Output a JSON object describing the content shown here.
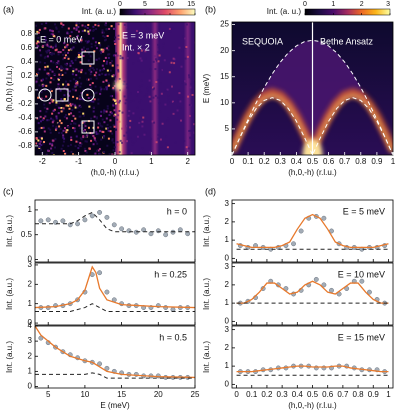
{
  "chart_data": [
    {
      "type": "heatmap",
      "panel_label": "(a)",
      "xlabel": "(h,0,-h) (r.l.u.)",
      "ylabel": "(h,0,h) (r.l.u.)",
      "xlim": [
        -2.2,
        2.2
      ],
      "xticks": [
        -2,
        -1,
        0,
        1,
        2
      ],
      "ylim": [
        -0.93,
        0.97
      ],
      "yticks": [
        -0.8,
        -0.6,
        -0.4,
        -0.2,
        0,
        0.2,
        0.4,
        0.6,
        0.8
      ],
      "annotations": [
        "E = 0 meV",
        "E = 3 meV",
        "Int. × 2"
      ],
      "colorbar": {
        "label": "Int. (a. u.)",
        "lim": [
          0,
          15
        ],
        "ticks": [
          0,
          5,
          10,
          15
        ],
        "colors": [
          "#000004",
          "#3b0f70",
          "#8c2981",
          "#de4968",
          "#fe9f6d",
          "#fcfdbf"
        ]
      }
    },
    {
      "type": "heatmap",
      "panel_label": "(b)",
      "xlabel": "(h,0,-h) (r.l.u.)",
      "ylabel": "E (meV)",
      "xlim": [
        0,
        1
      ],
      "xticks": [
        0,
        0.1,
        0.2,
        0.3,
        0.4,
        0.5,
        0.6,
        0.7,
        0.8,
        0.9,
        1
      ],
      "ylim": [
        0,
        25.5
      ],
      "yticks": [
        5,
        10,
        15,
        20,
        25
      ],
      "annotations": [
        "SEQUOIA",
        "Bethe Ansatz"
      ],
      "colorbar": {
        "label": "Int. (a. u.)",
        "lim": [
          0,
          3
        ],
        "ticks": [
          0,
          1,
          2,
          3
        ],
        "colors": [
          "#000004",
          "#1b0c41",
          "#4a0c6b",
          "#a52c60",
          "#ed6925",
          "#fbb61a",
          "#fcffa4"
        ]
      },
      "series": [
        {
          "style": "dashed",
          "color": "#ffffff",
          "x": [
            0,
            0.05,
            0.1,
            0.15,
            0.2,
            0.25,
            0.3,
            0.35,
            0.4,
            0.45,
            0.5,
            0.55,
            0.6,
            0.65,
            0.7,
            0.75,
            0.8,
            0.85,
            0.9,
            0.95,
            1
          ],
          "values": [
            0,
            3.44,
            6.8,
            9.99,
            12.93,
            15.56,
            17.8,
            19.6,
            20.92,
            21.73,
            22,
            21.73,
            20.92,
            19.6,
            17.8,
            15.56,
            12.93,
            9.99,
            6.8,
            3.44,
            0
          ]
        },
        {
          "style": "dashed",
          "color": "#ffffff",
          "x": [
            0,
            0.05,
            0.1,
            0.15,
            0.2,
            0.25,
            0.3,
            0.35,
            0.4,
            0.45,
            0.5,
            0.55,
            0.6,
            0.65,
            0.7,
            0.75,
            0.8,
            0.85,
            0.9,
            0.95,
            1
          ],
          "values": [
            0,
            3.4,
            6.47,
            8.9,
            10.46,
            11,
            10.46,
            8.9,
            6.47,
            3.4,
            0,
            3.4,
            6.47,
            8.9,
            10.46,
            11,
            10.46,
            8.9,
            6.47,
            3.4,
            0
          ]
        }
      ]
    },
    {
      "type": "line",
      "panel_label": "(c)",
      "ylabel": "Int. (a.u.)",
      "annotation": "h = 0",
      "xlim": [
        3.2,
        25
      ],
      "xticks": [
        5,
        10,
        15,
        20,
        25
      ],
      "show_xtick_labels": false,
      "ylim": [
        -0.05,
        1.2
      ],
      "yticks": [
        0,
        0.5,
        1
      ],
      "series": [
        {
          "style": "markers",
          "color": "#a3acb6",
          "x": [
            4,
            5,
            6,
            7,
            8,
            9,
            10,
            11,
            12,
            13,
            14,
            15,
            16,
            17,
            18,
            19,
            20,
            21,
            22,
            23,
            24
          ],
          "values": [
            0.78,
            0.8,
            0.75,
            0.78,
            0.7,
            0.72,
            0.8,
            0.88,
            0.95,
            0.85,
            0.7,
            0.62,
            0.58,
            0.55,
            0.6,
            0.52,
            0.58,
            0.5,
            0.55,
            0.6,
            0.52
          ]
        },
        {
          "style": "dashed",
          "color": "#222222",
          "x": [
            3.2,
            8,
            9,
            10,
            11,
            12,
            13,
            14,
            25
          ],
          "values": [
            0.72,
            0.72,
            0.78,
            0.88,
            0.95,
            0.8,
            0.62,
            0.56,
            0.56
          ]
        }
      ]
    },
    {
      "type": "line",
      "ylabel": "Int. (a.u.)",
      "annotation": "h = 0.25",
      "xlim": [
        3.2,
        25
      ],
      "xticks": [
        5,
        10,
        15,
        20,
        25
      ],
      "show_xtick_labels": false,
      "ylim": [
        -0.1,
        3.1
      ],
      "yticks": [
        0,
        1,
        2,
        3
      ],
      "series": [
        {
          "style": "markers",
          "color": "#a3acb6",
          "x": [
            4,
            5,
            6,
            7,
            8,
            9,
            10,
            11,
            12,
            13,
            14,
            15,
            16,
            17,
            18,
            19,
            20,
            21,
            22,
            23,
            24
          ],
          "values": [
            0.8,
            0.8,
            0.9,
            0.9,
            1,
            1.2,
            1.6,
            2.5,
            2.6,
            1.6,
            1.2,
            1,
            0.9,
            0.9,
            0.8,
            0.8,
            0.9,
            0.8,
            0.7,
            0.8,
            0.8
          ]
        },
        {
          "style": "solid",
          "color": "#e8792c",
          "x": [
            3.2,
            6,
            8,
            9,
            10,
            10.5,
            11,
            11.5,
            12,
            13,
            15,
            20,
            25
          ],
          "values": [
            0.8,
            0.85,
            1,
            1.2,
            1.7,
            2.3,
            2.9,
            2.6,
            1.8,
            1.2,
            0.95,
            0.85,
            0.8
          ]
        },
        {
          "style": "dashed",
          "color": "#222222",
          "x": [
            3.2,
            8,
            10,
            11,
            12,
            13,
            25
          ],
          "values": [
            0.6,
            0.6,
            0.8,
            1,
            0.8,
            0.6,
            0.6
          ]
        }
      ]
    },
    {
      "type": "line",
      "ylabel": "Int. (a.u.)",
      "xlabel": "E (meV)",
      "annotation": "h = 0.5",
      "xlim": [
        3.2,
        25
      ],
      "xticks": [
        5,
        10,
        15,
        20,
        25
      ],
      "ylim": [
        -0.1,
        4
      ],
      "yticks": [
        0,
        1,
        2,
        3,
        4
      ],
      "series": [
        {
          "style": "markers",
          "color": "#a3acb6",
          "x": [
            4,
            5,
            6,
            7,
            8,
            9,
            10,
            11,
            12,
            13,
            14,
            15,
            16,
            17,
            18,
            19,
            20,
            21,
            22,
            23,
            24
          ],
          "values": [
            3.2,
            2.9,
            2.6,
            2.3,
            2.1,
            1.9,
            1.7,
            1.6,
            1.5,
            1.2,
            1,
            0.9,
            0.8,
            0.8,
            0.7,
            0.7,
            0.7,
            0.6,
            0.6,
            0.6,
            0.6
          ]
        },
        {
          "style": "solid",
          "color": "#e8792c",
          "x": [
            3.2,
            4,
            6,
            8,
            10,
            11,
            12,
            13,
            15,
            20,
            25
          ],
          "values": [
            4,
            3.4,
            2.6,
            2,
            1.7,
            1.6,
            1.3,
            1,
            0.8,
            0.65,
            0.6
          ]
        },
        {
          "style": "dashed",
          "color": "#222222",
          "x": [
            3.2,
            10,
            11,
            12,
            13,
            25
          ],
          "values": [
            0.8,
            0.8,
            0.9,
            0.8,
            0.55,
            0.55
          ]
        }
      ]
    },
    {
      "type": "line",
      "panel_label": "(d)",
      "ylabel": "Int. (a.u.)",
      "annotation": "E = 5 meV",
      "xlim": [
        -0.03,
        1.03
      ],
      "xticks": [
        0,
        0.1,
        0.2,
        0.3,
        0.4,
        0.5,
        0.6,
        0.7,
        0.8,
        0.9,
        1
      ],
      "show_xtick_labels": false,
      "ylim": [
        -0.2,
        3.2
      ],
      "yticks": [
        0,
        1,
        2,
        3
      ],
      "series": [
        {
          "style": "markers",
          "color": "#a3acb6",
          "x": [
            0.025,
            0.075,
            0.125,
            0.175,
            0.225,
            0.275,
            0.325,
            0.375,
            0.425,
            0.475,
            0.525,
            0.575,
            0.625,
            0.675,
            0.725,
            0.775,
            0.825,
            0.875,
            0.925,
            0.975
          ],
          "values": [
            0.7,
            0.6,
            0.7,
            0.6,
            0.5,
            0.6,
            0.7,
            0.8,
            1.5,
            2.2,
            2.3,
            2.2,
            1.5,
            0.8,
            0.6,
            0.6,
            0.5,
            0.6,
            0.6,
            0.7
          ]
        },
        {
          "style": "solid",
          "color": "#e8792c",
          "x": [
            0,
            0.05,
            0.1,
            0.15,
            0.2,
            0.25,
            0.3,
            0.35,
            0.4,
            0.45,
            0.5,
            0.55,
            0.6,
            0.65,
            0.7,
            0.75,
            0.8,
            0.85,
            0.9,
            0.95,
            1
          ],
          "values": [
            0.8,
            0.7,
            0.6,
            0.6,
            0.6,
            0.6,
            0.7,
            0.9,
            1.6,
            2.2,
            2.4,
            2.2,
            1.6,
            0.9,
            0.7,
            0.6,
            0.6,
            0.6,
            0.6,
            0.7,
            0.8
          ]
        },
        {
          "style": "dashed",
          "color": "#222222",
          "x": [
            0,
            1
          ],
          "values": [
            0.5,
            0.5
          ]
        }
      ]
    },
    {
      "type": "line",
      "ylabel": "Int. (a.u.)",
      "annotation": "E = 10 meV",
      "xlim": [
        -0.03,
        1.03
      ],
      "xticks": [
        0,
        0.1,
        0.2,
        0.3,
        0.4,
        0.5,
        0.6,
        0.7,
        0.8,
        0.9,
        1
      ],
      "show_xtick_labels": false,
      "ylim": [
        -0.2,
        3.2
      ],
      "yticks": [
        0,
        1,
        2,
        3
      ],
      "series": [
        {
          "style": "markers",
          "color": "#a3acb6",
          "x": [
            0.025,
            0.075,
            0.125,
            0.175,
            0.225,
            0.275,
            0.325,
            0.375,
            0.425,
            0.475,
            0.525,
            0.575,
            0.625,
            0.675,
            0.725,
            0.775,
            0.825,
            0.875,
            0.925,
            0.975
          ],
          "values": [
            1,
            1.1,
            1.3,
            1.8,
            2.2,
            2,
            1.8,
            1.5,
            1.7,
            2,
            2.3,
            2,
            1.7,
            1.5,
            1.8,
            2.2,
            2.2,
            1.6,
            1.2,
            1
          ]
        },
        {
          "style": "solid",
          "color": "#e8792c",
          "x": [
            0,
            0.05,
            0.1,
            0.15,
            0.2,
            0.25,
            0.3,
            0.35,
            0.4,
            0.45,
            0.5,
            0.55,
            0.6,
            0.65,
            0.7,
            0.75,
            0.8,
            0.85,
            0.9,
            0.95,
            1
          ],
          "values": [
            1,
            1,
            1.2,
            1.6,
            2.1,
            2.1,
            1.8,
            1.5,
            1.6,
            2,
            2.2,
            2,
            1.6,
            1.5,
            1.8,
            2.1,
            2.1,
            1.6,
            1.2,
            1,
            1
          ]
        },
        {
          "style": "dashed",
          "color": "#222222",
          "x": [
            0,
            1
          ],
          "values": [
            1,
            1
          ]
        }
      ]
    },
    {
      "type": "line",
      "ylabel": "Int. (a.u.)",
      "xlabel": "(h,0,-h) (r.l.u.)",
      "annotation": "E = 15 meV",
      "xlim": [
        -0.03,
        1.03
      ],
      "xticks": [
        0,
        0.1,
        0.2,
        0.3,
        0.4,
        0.5,
        0.6,
        0.7,
        0.8,
        0.9,
        1
      ],
      "ylim": [
        -0.2,
        3.2
      ],
      "yticks": [
        0,
        1,
        2,
        3
      ],
      "series": [
        {
          "style": "markers",
          "color": "#a3acb6",
          "x": [
            0.025,
            0.075,
            0.125,
            0.175,
            0.225,
            0.275,
            0.325,
            0.375,
            0.425,
            0.475,
            0.525,
            0.575,
            0.625,
            0.675,
            0.725,
            0.775,
            0.825,
            0.875,
            0.925,
            0.975
          ],
          "values": [
            0.7,
            0.7,
            0.7,
            0.8,
            0.8,
            0.9,
            0.9,
            1,
            1,
            1,
            0.9,
            0.9,
            0.9,
            1,
            1,
            0.9,
            0.8,
            0.8,
            0.8,
            0.7
          ]
        },
        {
          "style": "solid",
          "color": "#e8792c",
          "x": [
            0,
            0.05,
            0.1,
            0.15,
            0.2,
            0.25,
            0.3,
            0.35,
            0.4,
            0.45,
            0.5,
            0.55,
            0.6,
            0.65,
            0.7,
            0.75,
            0.8,
            0.85,
            0.9,
            0.95,
            1
          ],
          "values": [
            0.7,
            0.7,
            0.7,
            0.75,
            0.8,
            0.85,
            0.9,
            0.95,
            1,
            1,
            0.95,
            0.95,
            0.95,
            1,
            1,
            0.9,
            0.85,
            0.8,
            0.75,
            0.7,
            0.7
          ]
        },
        {
          "style": "dashed",
          "color": "#222222",
          "x": [
            0,
            1
          ],
          "values": [
            0.5,
            0.5
          ]
        }
      ]
    }
  ]
}
